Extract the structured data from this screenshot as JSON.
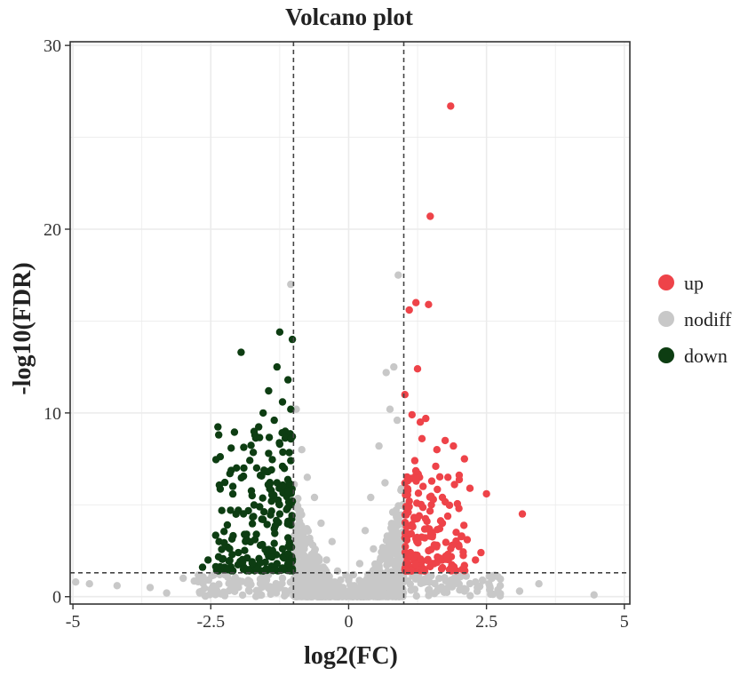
{
  "chart_data": {
    "type": "scatter",
    "title": "Volcano plot",
    "xlabel": "log2(FC)",
    "ylabel": "-log10(FDR)",
    "xlim": [
      -5.05,
      5.1
    ],
    "ylim": [
      -0.4,
      30.2
    ],
    "xticks": [
      -5,
      -2.5,
      0,
      2.5,
      5
    ],
    "xtick_labels": [
      "-5",
      "-2.5",
      "0",
      "2.5",
      "5"
    ],
    "yticks": [
      0,
      10,
      20,
      30
    ],
    "ytick_labels": [
      "0",
      "10",
      "20",
      "30"
    ],
    "grid": true,
    "thresholds": {
      "log2fc": [
        -1,
        1
      ],
      "neg_log10_fdr": 1.3
    },
    "legend_position": "right",
    "colors": {
      "up": "#ee4349",
      "nodiff": "#c8c8c8",
      "down": "#0d3d12",
      "grid": "#ebebeb",
      "axis": "#333333"
    },
    "series": [
      {
        "name": "up",
        "points": [
          [
            1.85,
            26.7
          ],
          [
            1.48,
            20.7
          ],
          [
            1.22,
            16.0
          ],
          [
            1.45,
            15.9
          ],
          [
            1.1,
            15.6
          ],
          [
            1.25,
            12.4
          ],
          [
            1.02,
            11.0
          ],
          [
            1.15,
            9.9
          ],
          [
            1.4,
            9.7
          ],
          [
            1.3,
            9.5
          ],
          [
            1.75,
            8.5
          ],
          [
            1.9,
            8.2
          ],
          [
            1.6,
            8.0
          ],
          [
            2.1,
            7.5
          ],
          [
            1.2,
            7.4
          ],
          [
            2.5,
            5.6
          ],
          [
            3.15,
            4.5
          ],
          [
            2.2,
            5.9
          ],
          [
            1.8,
            6.5
          ],
          [
            1.35,
            6.0
          ],
          [
            2.0,
            4.8
          ],
          [
            1.7,
            4.0
          ],
          [
            1.1,
            5.2
          ],
          [
            1.5,
            5.0
          ],
          [
            1.28,
            4.4
          ],
          [
            1.95,
            3.5
          ],
          [
            2.05,
            3.3
          ],
          [
            2.15,
            3.1
          ],
          [
            1.6,
            2.8
          ],
          [
            1.05,
            3.8
          ],
          [
            1.45,
            2.5
          ],
          [
            1.8,
            2.3
          ],
          [
            2.3,
            2.0
          ],
          [
            2.1,
            1.7
          ],
          [
            1.25,
            2.0
          ],
          [
            1.12,
            2.4
          ],
          [
            1.55,
            1.8
          ],
          [
            1.38,
            3.2
          ],
          [
            1.65,
            3.7
          ],
          [
            1.08,
            4.6
          ],
          [
            1.22,
            6.6
          ],
          [
            1.58,
            7.1
          ],
          [
            1.92,
            6.1
          ],
          [
            1.33,
            8.6
          ],
          [
            1.7,
            5.4
          ],
          [
            1.18,
            1.6
          ],
          [
            2.4,
            2.4
          ],
          [
            1.05,
            2.2
          ],
          [
            1.42,
            4.1
          ],
          [
            1.88,
            2.8
          ]
        ]
      },
      {
        "name": "nodiff",
        "points": [
          [
            -1.05,
            17.0
          ],
          [
            0.9,
            17.5
          ],
          [
            0.68,
            12.2
          ],
          [
            0.82,
            12.5
          ],
          [
            0.75,
            10.2
          ],
          [
            -0.95,
            10.2
          ],
          [
            0.88,
            9.6
          ],
          [
            -0.85,
            8.0
          ],
          [
            -0.75,
            6.5
          ],
          [
            0.55,
            8.2
          ],
          [
            -0.62,
            5.4
          ],
          [
            0.4,
            5.4
          ],
          [
            0.66,
            6.2
          ],
          [
            0.8,
            4.6
          ],
          [
            -0.5,
            4.0
          ],
          [
            0.3,
            3.6
          ],
          [
            -0.3,
            3.0
          ],
          [
            0.45,
            2.6
          ],
          [
            -0.4,
            2.0
          ],
          [
            0.2,
            1.8
          ],
          [
            -0.2,
            1.4
          ],
          [
            0.0,
            0.9
          ],
          [
            0.1,
            0.6
          ],
          [
            -0.1,
            0.5
          ],
          [
            0.35,
            1.2
          ],
          [
            -0.65,
            2.8
          ],
          [
            0.7,
            3.3
          ],
          [
            -0.9,
            3.5
          ],
          [
            0.9,
            2.2
          ],
          [
            -0.8,
            1.6
          ],
          [
            -2.0,
            0.8
          ],
          [
            -3.0,
            1.0
          ],
          [
            -4.7,
            0.7
          ],
          [
            -4.2,
            0.6
          ],
          [
            -3.6,
            0.5
          ],
          [
            2.3,
            0.8
          ],
          [
            2.75,
            0.6
          ],
          [
            3.45,
            0.7
          ],
          [
            4.45,
            0.1
          ],
          [
            -2.5,
            0.4
          ],
          [
            1.4,
            0.9
          ],
          [
            1.8,
            0.5
          ],
          [
            -1.5,
            0.6
          ],
          [
            -1.2,
            1.0
          ],
          [
            0.6,
            1.0
          ],
          [
            -0.55,
            1.0
          ],
          [
            2.1,
            0.3
          ],
          [
            -2.7,
            0.2
          ],
          [
            -4.95,
            0.8
          ],
          [
            3.1,
            0.3
          ],
          [
            -0.95,
            5.2
          ],
          [
            0.95,
            5.8
          ],
          [
            -0.7,
            3.0
          ],
          [
            0.5,
            1.6
          ],
          [
            -0.25,
            0.8
          ],
          [
            1.2,
            0.4
          ],
          [
            -1.8,
            0.3
          ],
          [
            2.6,
            1.0
          ],
          [
            -3.3,
            0.2
          ],
          [
            0.15,
            0.2
          ]
        ]
      },
      {
        "name": "down",
        "points": [
          [
            -1.25,
            14.4
          ],
          [
            -1.02,
            14.0
          ],
          [
            -1.95,
            13.3
          ],
          [
            -1.3,
            12.5
          ],
          [
            -1.1,
            11.8
          ],
          [
            -1.45,
            11.2
          ],
          [
            -1.2,
            10.6
          ],
          [
            -1.05,
            10.2
          ],
          [
            -1.55,
            10.0
          ],
          [
            -1.35,
            9.6
          ],
          [
            -1.15,
            9.0
          ],
          [
            -1.7,
            8.8
          ],
          [
            -1.25,
            8.3
          ],
          [
            -1.45,
            7.8
          ],
          [
            -1.05,
            7.4
          ],
          [
            -1.9,
            7.0
          ],
          [
            -1.6,
            6.6
          ],
          [
            -1.3,
            6.2
          ],
          [
            -2.1,
            6.0
          ],
          [
            -1.15,
            5.8
          ],
          [
            -1.75,
            5.5
          ],
          [
            -1.4,
            5.2
          ],
          [
            -1.05,
            5.0
          ],
          [
            -2.0,
            4.7
          ],
          [
            -1.25,
            4.5
          ],
          [
            -1.55,
            4.2
          ],
          [
            -2.2,
            3.9
          ],
          [
            -1.35,
            3.7
          ],
          [
            -1.85,
            3.4
          ],
          [
            -1.1,
            3.2
          ],
          [
            -2.35,
            3.0
          ],
          [
            -1.6,
            2.8
          ],
          [
            -1.2,
            2.6
          ],
          [
            -2.0,
            2.4
          ],
          [
            -1.45,
            2.2
          ],
          [
            -2.55,
            2.0
          ],
          [
            -1.75,
            1.9
          ],
          [
            -1.3,
            1.8
          ],
          [
            -2.65,
            1.6
          ],
          [
            -1.05,
            1.7
          ],
          [
            -1.9,
            1.6
          ],
          [
            -1.5,
            1.5
          ],
          [
            -2.25,
            1.6
          ],
          [
            -1.15,
            1.5
          ],
          [
            -1.65,
            1.7
          ],
          [
            -1.35,
            2.9
          ],
          [
            -1.1,
            4.1
          ],
          [
            -1.4,
            6.9
          ],
          [
            -1.2,
            7.1
          ],
          [
            -1.08,
            8.7
          ]
        ]
      }
    ]
  }
}
